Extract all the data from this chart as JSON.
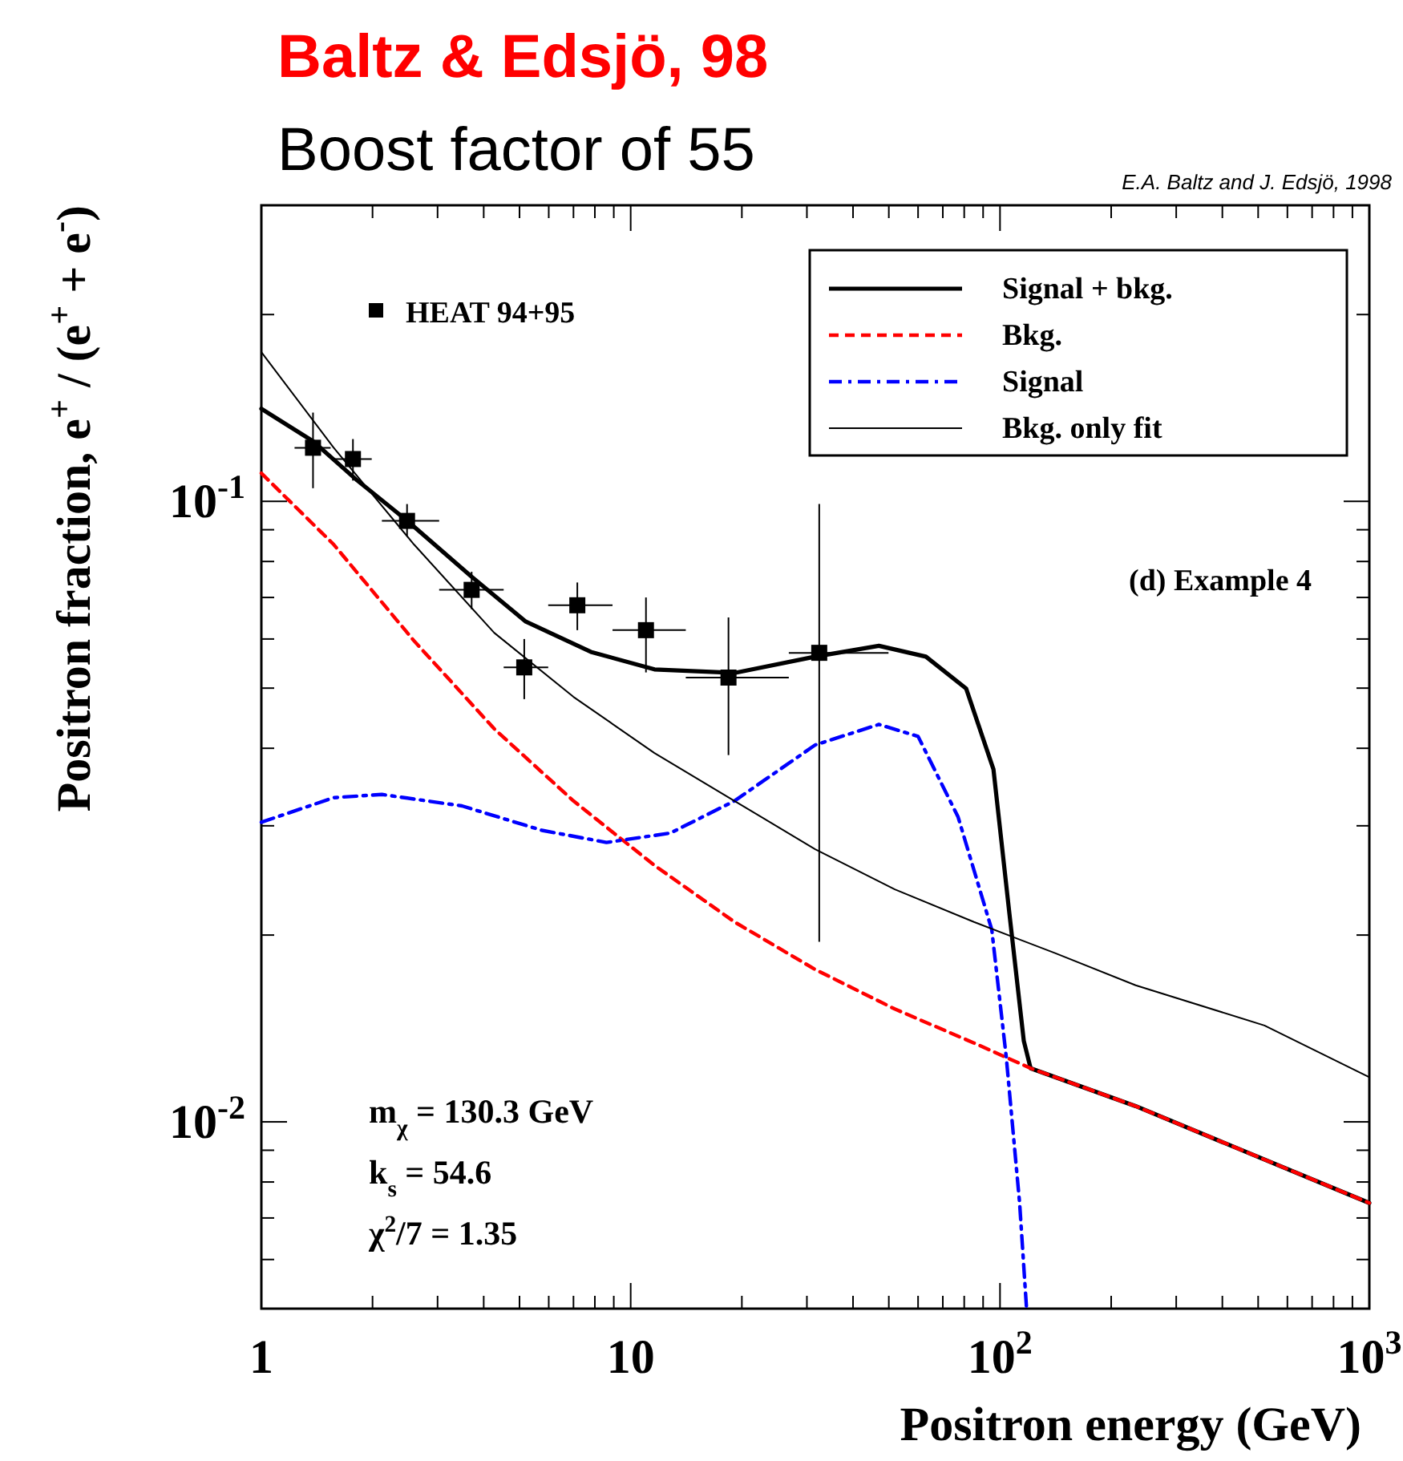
{
  "chart_data": {
    "type": "line",
    "title": "Baltz & Edsjö, 98",
    "subtitle": "Boost factor of 55",
    "xlabel": "Positron energy (GeV)",
    "ylabel": "Positron fraction, e$^{+}$ / (e$^{+}$ + e$^{-}$)",
    "log": "xy",
    "xlim": [
      1,
      1000
    ],
    "ylim": [
      0.005,
      0.3
    ],
    "legend": "top right",
    "grid": false,
    "xticks": [
      1,
      10,
      {
        "value": 100,
        "label": "10$^{2}$"
      },
      {
        "value": 1000,
        "label": "10$^{3}$"
      },
      {
        "value": 2,
        "label": null
      },
      {
        "value": 3,
        "label": null
      },
      {
        "value": 4,
        "label": null
      },
      {
        "value": 5,
        "label": null
      },
      {
        "value": 6,
        "label": null
      },
      {
        "value": 7,
        "label": null
      },
      {
        "value": 8,
        "label": null
      },
      {
        "value": 9,
        "label": null
      },
      {
        "value": 20,
        "label": null
      },
      {
        "value": 30,
        "label": null
      },
      {
        "value": 40,
        "label": null
      },
      {
        "value": 50,
        "label": null
      },
      {
        "value": 60,
        "label": null
      },
      {
        "value": 70,
        "label": null
      },
      {
        "value": 80,
        "label": null
      },
      {
        "value": 90,
        "label": null
      },
      {
        "value": 200,
        "label": null
      },
      {
        "value": 300,
        "label": null
      },
      {
        "value": 400,
        "label": null
      },
      {
        "value": 500,
        "label": null
      },
      {
        "value": 600,
        "label": null
      },
      {
        "value": 700,
        "label": null
      },
      {
        "value": 800,
        "label": null
      },
      {
        "value": 900,
        "label": null
      }
    ],
    "yticks": [
      {
        "value": 0.01,
        "label": "10$^{-2}$"
      },
      {
        "value": 0.1,
        "label": "10$^{-1}$"
      },
      {
        "value": 0.006,
        "label": null
      },
      {
        "value": 0.007,
        "label": null
      },
      {
        "value": 0.008,
        "label": null
      },
      {
        "value": 0.009,
        "label": null
      },
      {
        "value": 0.02,
        "label": null
      },
      {
        "value": 0.03,
        "label": null
      },
      {
        "value": 0.04,
        "label": null
      },
      {
        "value": 0.05,
        "label": null
      },
      {
        "value": 0.06,
        "label": null
      },
      {
        "value": 0.07,
        "label": null
      },
      {
        "value": 0.08,
        "label": null
      },
      {
        "value": 0.09,
        "label": null
      },
      {
        "value": 0.2,
        "label": null
      },
      {
        "value": 0.3,
        "label": null
      }
    ],
    "annotations": [
      "E.A. Baltz and J. Edsjö, 1998",
      "(d) Example 4",
      "m$_{χ}$ = 130.3 GeV",
      "k$_{s}$ = 54.6",
      "χ$^{2}$/7 = 1.35"
    ],
    "series": [
      {
        "name": "HEAT 94+95",
        "type": "scatter",
        "marker": "square",
        "color": "#000000",
        "x": [
          1.38,
          1.77,
          2.48,
          3.71,
          5.15,
          7.17,
          11.0,
          18.4,
          32.4
        ],
        "values": [
          0.122,
          0.117,
          0.093,
          0.072,
          0.054,
          0.068,
          0.062,
          0.052,
          0.057
        ],
        "errors": [
          [
            0.105,
            0.139
          ],
          [
            0.108,
            0.126
          ],
          [
            0.088,
            0.099
          ],
          [
            0.067,
            0.077
          ],
          [
            0.048,
            0.06
          ],
          [
            0.062,
            0.074
          ],
          [
            0.053,
            0.07
          ],
          [
            0.039,
            0.065
          ],
          [
            0.0195,
            0.099
          ]
        ],
        "xerrors": [
          [
            1.23,
            1.54
          ],
          [
            1.57,
            1.99
          ],
          [
            2.12,
            3.03
          ],
          [
            3.03,
            4.53
          ],
          [
            4.53,
            5.98
          ],
          [
            5.98,
            8.93
          ],
          [
            8.93,
            14.1
          ],
          [
            14.1,
            26.8
          ],
          [
            26.8,
            49.9
          ]
        ]
      },
      {
        "name": "Signal + bkg.",
        "line_style": "solid",
        "color": "#000000",
        "x": [
          1,
          1.38,
          1.82,
          2.48,
          3.71,
          5.2,
          7.8,
          11.6,
          19.1,
          31.6,
          47,
          63,
          81,
          96,
          106,
          116,
          121,
          233,
          1000
        ],
        "values": [
          0.141,
          0.125,
          0.108,
          0.0931,
          0.0756,
          0.064,
          0.0572,
          0.0536,
          0.0529,
          0.0562,
          0.0585,
          0.0562,
          0.0499,
          0.037,
          0.0217,
          0.0135,
          0.0122,
          0.0106,
          0.0074
        ]
      },
      {
        "name": "Bkg.",
        "line_style": "dashed",
        "color": "#ff0000",
        "x": [
          1,
          1.57,
          2.59,
          4.27,
          7.0,
          11.6,
          19.1,
          31.6,
          51.9,
          85,
          121,
          233,
          1000
        ],
        "values": [
          0.111,
          0.0852,
          0.0596,
          0.043,
          0.0329,
          0.0259,
          0.021,
          0.0176,
          0.0152,
          0.0134,
          0.0122,
          0.0106,
          0.0074
        ]
      },
      {
        "name": "Signal",
        "line_style": "dashdot",
        "color": "#0000ff",
        "x": [
          1,
          1.57,
          2.12,
          3.49,
          5.75,
          8.6,
          12.8,
          19.1,
          31.6,
          47,
          60,
          77,
          95,
          104,
          113,
          118
        ],
        "values": [
          0.0304,
          0.0333,
          0.0337,
          0.0323,
          0.0295,
          0.0282,
          0.0292,
          0.0329,
          0.0405,
          0.0437,
          0.0418,
          0.031,
          0.0204,
          0.0127,
          0.0074,
          0.005
        ]
      },
      {
        "name": "Bkg. only fit",
        "line_style": "solid",
        "color": "#000000",
        "x": [
          1,
          1.57,
          2.59,
          4.27,
          7.0,
          11.6,
          19.1,
          31.6,
          51.9,
          85,
          141,
          233,
          520,
          1000
        ],
        "values": [
          0.174,
          0.122,
          0.0852,
          0.0614,
          0.0484,
          0.0393,
          0.0329,
          0.0275,
          0.0237,
          0.021,
          0.0187,
          0.0166,
          0.0143,
          0.0118
        ]
      }
    ]
  }
}
